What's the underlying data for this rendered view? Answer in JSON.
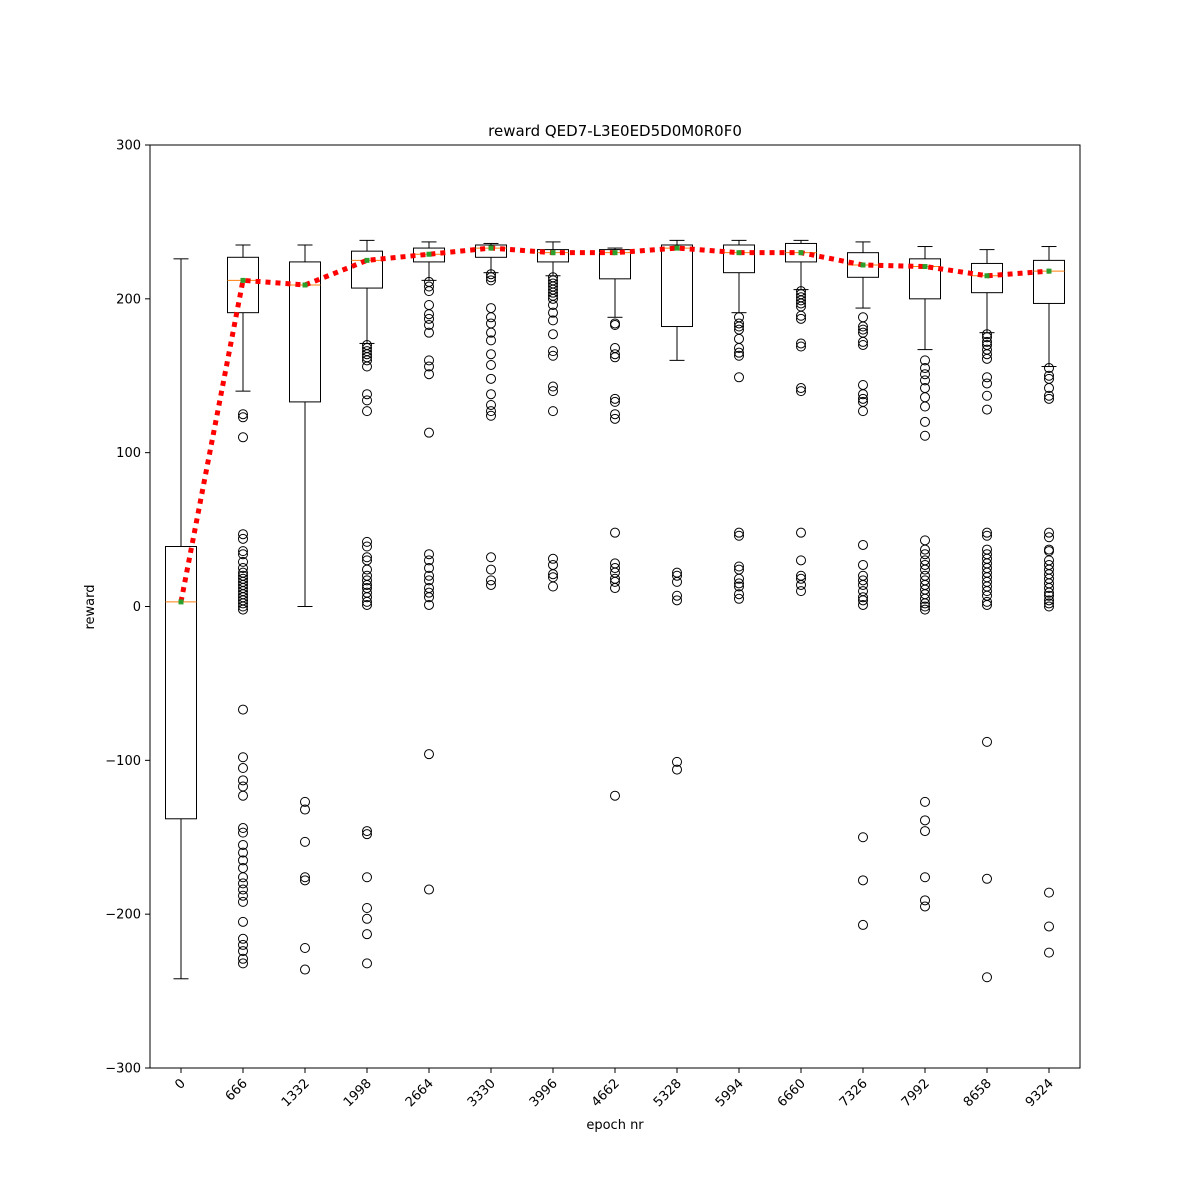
{
  "chart_data": {
    "type": "box",
    "title": "reward QED7-L3E0ED5D0M0R0F0",
    "xlabel": "epoch nr",
    "ylabel": "reward",
    "ylim": [
      -300,
      300
    ],
    "yticks": [
      -300,
      -200,
      -100,
      0,
      100,
      200,
      300
    ],
    "ytick_labels": [
      "−300",
      "−200",
      "−100",
      "0",
      "100",
      "200",
      "300"
    ],
    "categories": [
      "0",
      "666",
      "1332",
      "1998",
      "2664",
      "3330",
      "3996",
      "4662",
      "5328",
      "5994",
      "6660",
      "7326",
      "7992",
      "8658",
      "9324"
    ],
    "colors": {
      "median": "#ff7f0e",
      "mean_line": "#ff0000",
      "mean_marker": "#2ca02c",
      "box": "#000000"
    },
    "boxes": [
      {
        "q1": -138,
        "median": 3,
        "q3": 39,
        "whisker_low": -242,
        "whisker_high": 226,
        "mean": 3,
        "fliers": []
      },
      {
        "q1": 191,
        "median": 212,
        "q3": 227,
        "whisker_low": 140,
        "whisker_high": 235,
        "mean": 212,
        "fliers": [
          125,
          123,
          110,
          47,
          44,
          36,
          34,
          29,
          25,
          22,
          20,
          18,
          16,
          14,
          12,
          10,
          8,
          6,
          4,
          2,
          0,
          -2,
          -67,
          -98,
          -105,
          -113,
          -117,
          -123,
          -144,
          -147,
          -155,
          -160,
          -165,
          -170,
          -176,
          -180,
          -184,
          -188,
          -192,
          -205,
          -216,
          -220,
          -224,
          -229,
          -232
        ]
      },
      {
        "q1": 133,
        "median": 209,
        "q3": 224,
        "whisker_low": 0,
        "whisker_high": 235,
        "mean": 209,
        "fliers": [
          -127,
          -132,
          -153,
          -176,
          -178,
          -222,
          -236
        ]
      },
      {
        "q1": 207,
        "median": 225,
        "q3": 231,
        "whisker_low": 171,
        "whisker_high": 238,
        "mean": 225,
        "fliers": [
          170,
          168,
          166,
          164,
          162,
          160,
          156,
          138,
          134,
          127,
          42,
          39,
          32,
          30,
          24,
          20,
          17,
          14,
          12,
          9,
          6,
          3,
          1,
          -146,
          -148,
          -176,
          -196,
          -203,
          -213,
          -232
        ]
      },
      {
        "q1": 224,
        "median": 229,
        "q3": 233,
        "whisker_low": 212,
        "whisker_high": 237,
        "mean": 229,
        "fliers": [
          211,
          208,
          205,
          196,
          190,
          187,
          183,
          178,
          160,
          156,
          151,
          113,
          34,
          30,
          25,
          20,
          17,
          12,
          9,
          6,
          1,
          -96,
          -184
        ]
      },
      {
        "q1": 227,
        "median": 233,
        "q3": 235,
        "whisker_low": 217,
        "whisker_high": 236,
        "mean": 233,
        "fliers": [
          216,
          214,
          212,
          194,
          188,
          184,
          178,
          173,
          164,
          157,
          148,
          138,
          131,
          127,
          124,
          32,
          24,
          17,
          14
        ]
      },
      {
        "q1": 224,
        "median": 230,
        "q3": 232,
        "whisker_low": 215,
        "whisker_high": 237,
        "mean": 230,
        "fliers": [
          214,
          212,
          210,
          208,
          206,
          204,
          202,
          200,
          196,
          191,
          186,
          177,
          166,
          163,
          143,
          140,
          127,
          31,
          27,
          21,
          19,
          13
        ]
      },
      {
        "q1": 213,
        "median": 230,
        "q3": 232,
        "whisker_low": 188,
        "whisker_high": 233,
        "mean": 230,
        "fliers": [
          184,
          183,
          168,
          164,
          162,
          135,
          133,
          125,
          122,
          48,
          28,
          25,
          22,
          18,
          16,
          12,
          -123
        ]
      },
      {
        "q1": 182,
        "median": 233,
        "q3": 235,
        "whisker_low": 160,
        "whisker_high": 238,
        "mean": 233,
        "fliers": [
          22,
          20,
          16,
          7,
          4,
          -101,
          -106
        ]
      },
      {
        "q1": 217,
        "median": 230,
        "q3": 235,
        "whisker_low": 191,
        "whisker_high": 238,
        "mean": 230,
        "fliers": [
          188,
          184,
          182,
          180,
          174,
          168,
          165,
          163,
          149,
          48,
          46,
          26,
          24,
          18,
          15,
          13,
          8,
          5
        ]
      },
      {
        "q1": 224,
        "median": 230,
        "q3": 236,
        "whisker_low": 206,
        "whisker_high": 238,
        "mean": 230,
        "fliers": [
          205,
          203,
          201,
          199,
          197,
          195,
          189,
          187,
          171,
          169,
          142,
          140,
          48,
          30,
          20,
          18,
          14,
          10
        ]
      },
      {
        "q1": 214,
        "median": 222,
        "q3": 230,
        "whisker_low": 194,
        "whisker_high": 237,
        "mean": 222,
        "fliers": [
          188,
          182,
          180,
          178,
          172,
          170,
          144,
          138,
          135,
          133,
          127,
          40,
          27,
          20,
          17,
          14,
          10,
          6,
          4,
          1,
          -150,
          -178,
          -207
        ]
      },
      {
        "q1": 200,
        "median": 221,
        "q3": 226,
        "whisker_low": 167,
        "whisker_high": 234,
        "mean": 221,
        "fliers": [
          160,
          155,
          151,
          147,
          142,
          136,
          130,
          120,
          111,
          43,
          37,
          34,
          30,
          27,
          24,
          20,
          17,
          14,
          11,
          8,
          5,
          2,
          0,
          -2,
          -127,
          -139,
          -146,
          -176,
          -191,
          -195
        ]
      },
      {
        "q1": 204,
        "median": 215,
        "q3": 223,
        "whisker_low": 178,
        "whisker_high": 232,
        "mean": 215,
        "fliers": [
          177,
          175,
          172,
          170,
          167,
          164,
          161,
          149,
          145,
          137,
          128,
          48,
          46,
          37,
          34,
          31,
          28,
          25,
          22,
          19,
          16,
          13,
          10,
          7,
          3,
          1,
          -88,
          -177,
          -241
        ]
      },
      {
        "q1": 197,
        "median": 218,
        "q3": 225,
        "whisker_low": 156,
        "whisker_high": 234,
        "mean": 218,
        "fliers": [
          155,
          150,
          148,
          142,
          137,
          135,
          48,
          45,
          37,
          36,
          30,
          27,
          24,
          21,
          18,
          15,
          12,
          9,
          7,
          4,
          2,
          0,
          -186,
          -208,
          -225
        ]
      }
    ]
  }
}
